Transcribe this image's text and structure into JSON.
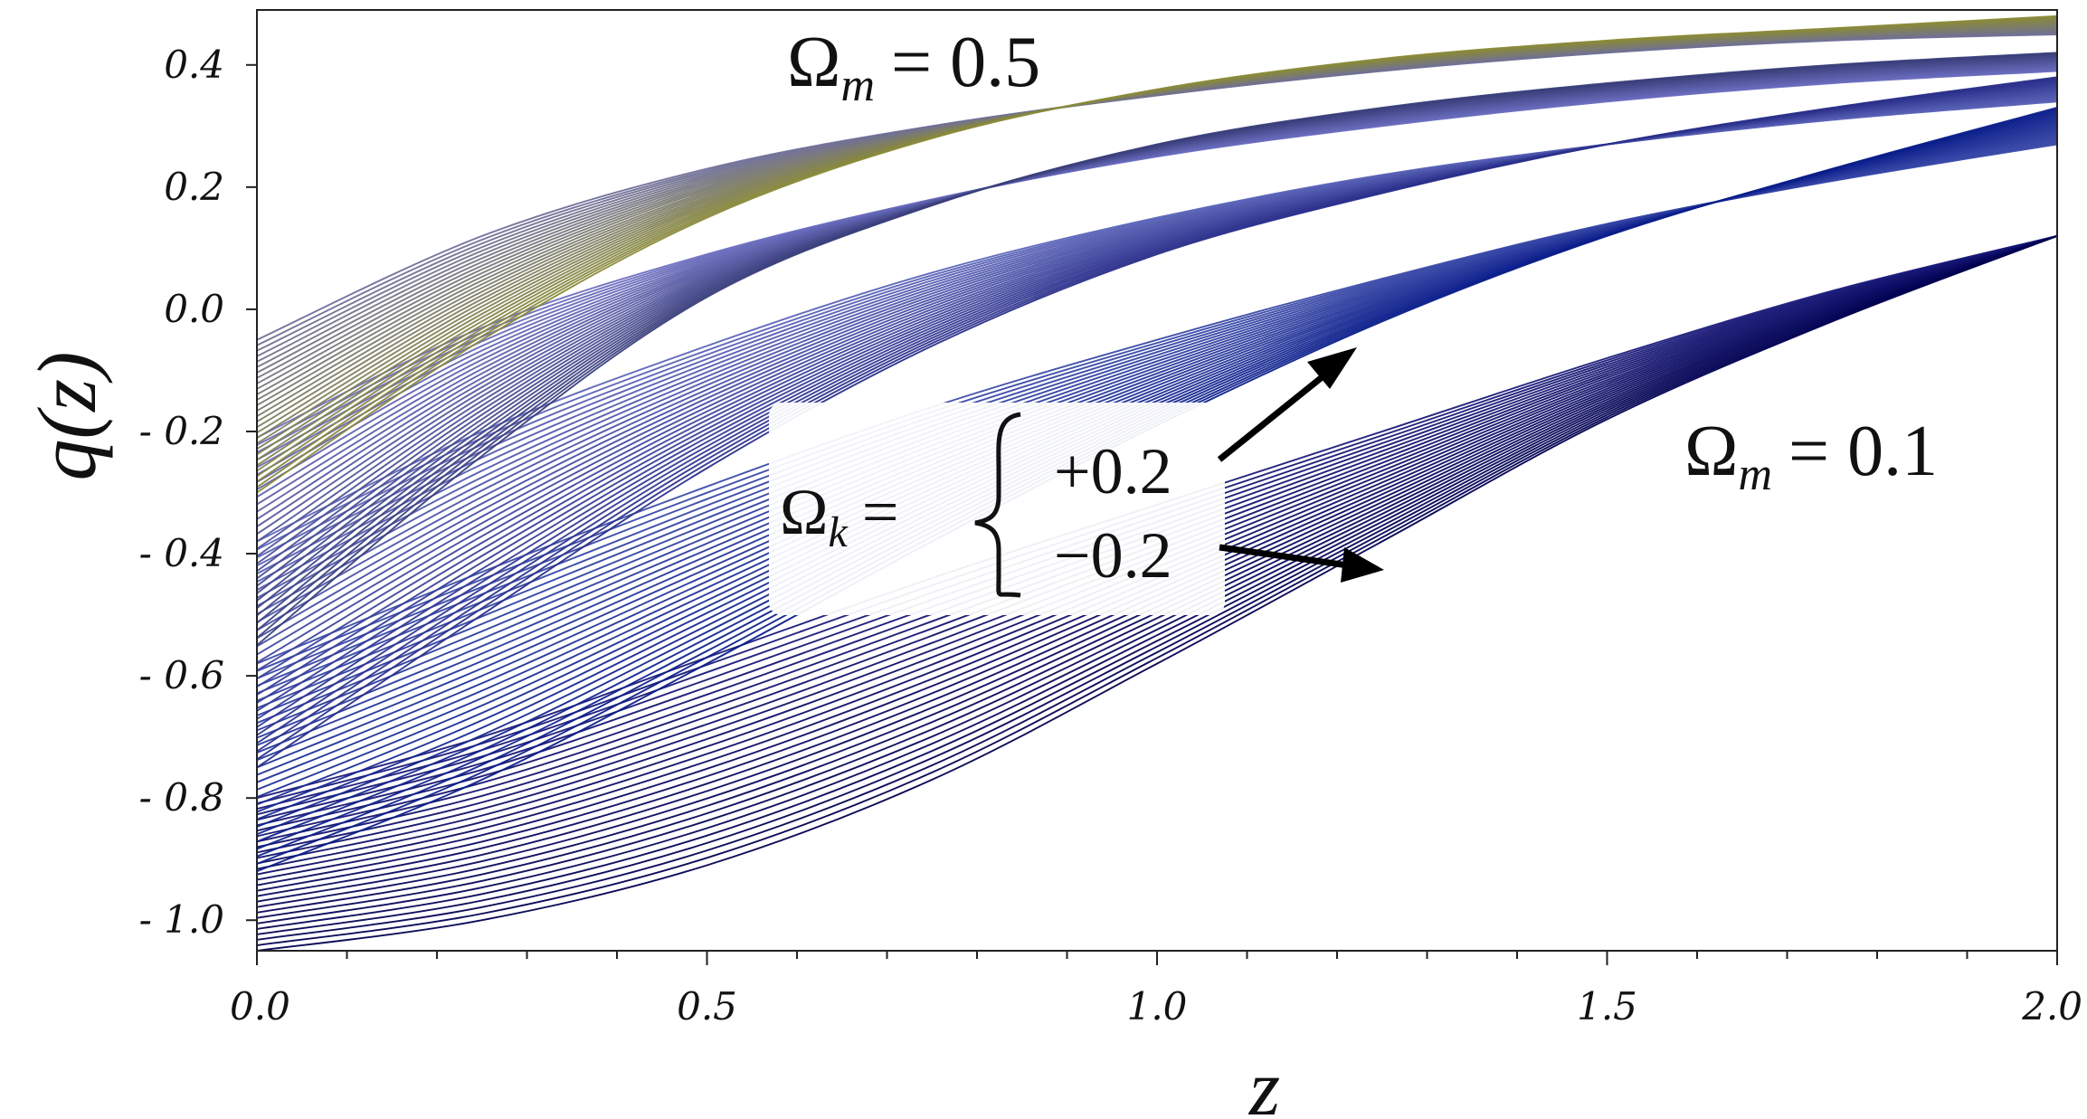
{
  "chart_data": {
    "type": "line",
    "title": "",
    "xlabel": "z",
    "ylabel": "q(z)",
    "xlim": [
      0.0,
      2.0
    ],
    "ylim": [
      -1.05,
      0.49
    ],
    "xticks": [
      0.0,
      0.5,
      1.0,
      1.5,
      2.0
    ],
    "xtick_labels": [
      "0.0",
      "0.5",
      "1.0",
      "1.5",
      "2.0"
    ],
    "yticks": [
      0.4,
      0.2,
      0.0,
      -0.2,
      -0.4,
      -0.6,
      -0.8,
      -1.0
    ],
    "ytick_labels": [
      "0.4",
      "0.2",
      "0.0",
      "- 0.2",
      "- 0.4",
      "- 0.6",
      "- 0.8",
      "- 1.0"
    ],
    "x_minor_step": 0.1,
    "grid": false,
    "legend": "none",
    "description_of_families": "Deceleration parameter q(z) curves for Omega_m from 0.1 to 0.5 and Omega_k from -0.2 to +0.2",
    "series": [
      {
        "name": "Omega_m=0.1, Omega_k=+0.2",
        "x": [
          0.0,
          0.25,
          0.5,
          0.75,
          1.0,
          1.25,
          1.5,
          1.75,
          2.0
        ],
        "values": [
          -0.8,
          -0.7,
          -0.57,
          -0.44,
          -0.32,
          -0.2,
          -0.08,
          0.03,
          0.12
        ],
        "color": "#1a1a7a"
      },
      {
        "name": "Omega_m=0.1, Omega_k=-0.2",
        "x": [
          0.0,
          0.25,
          0.5,
          0.75,
          1.0,
          1.25,
          1.5,
          1.75,
          2.0
        ],
        "values": [
          -1.05,
          -1.0,
          -0.91,
          -0.77,
          -0.58,
          -0.38,
          -0.18,
          -0.02,
          0.12
        ],
        "color": "#000050"
      },
      {
        "name": "Omega_m=0.2, Omega_k=+0.2",
        "x": [
          0.0,
          0.25,
          0.5,
          0.75,
          1.0,
          1.25,
          1.5,
          1.75,
          2.0
        ],
        "values": [
          -0.58,
          -0.43,
          -0.29,
          -0.16,
          -0.05,
          0.05,
          0.14,
          0.21,
          0.27
        ],
        "color": "#3a4aa8"
      },
      {
        "name": "Omega_m=0.2, Omega_k=-0.2",
        "x": [
          0.0,
          0.25,
          0.5,
          0.75,
          1.0,
          1.25,
          1.5,
          1.75,
          2.0
        ],
        "values": [
          -0.92,
          -0.77,
          -0.58,
          -0.38,
          -0.19,
          -0.02,
          0.12,
          0.23,
          0.33
        ],
        "color": "#0a1d8a"
      },
      {
        "name": "Omega_m=0.3, Omega_k=+0.2",
        "x": [
          0.0,
          0.25,
          0.5,
          0.75,
          1.0,
          1.25,
          1.5,
          1.75,
          2.0
        ],
        "values": [
          -0.38,
          -0.2,
          -0.06,
          0.06,
          0.15,
          0.22,
          0.27,
          0.31,
          0.34
        ],
        "color": "#5b64b8"
      },
      {
        "name": "Omega_m=0.3, Omega_k=-0.2",
        "x": [
          0.0,
          0.25,
          0.5,
          0.75,
          1.0,
          1.25,
          1.5,
          1.75,
          2.0
        ],
        "values": [
          -0.75,
          -0.5,
          -0.26,
          -0.06,
          0.09,
          0.19,
          0.27,
          0.33,
          0.38
        ],
        "color": "#2a2f8a"
      },
      {
        "name": "Omega_m=0.4, Omega_k=+0.2",
        "x": [
          0.0,
          0.25,
          0.5,
          0.75,
          1.0,
          1.25,
          1.5,
          1.75,
          2.0
        ],
        "values": [
          -0.21,
          -0.03,
          0.09,
          0.18,
          0.25,
          0.3,
          0.34,
          0.37,
          0.39
        ],
        "color": "#6c6ec0"
      },
      {
        "name": "Omega_m=0.4, Omega_k=-0.2",
        "x": [
          0.0,
          0.25,
          0.5,
          0.75,
          1.0,
          1.25,
          1.5,
          1.75,
          2.0
        ],
        "values": [
          -0.55,
          -0.24,
          0.02,
          0.17,
          0.27,
          0.33,
          0.37,
          0.4,
          0.42
        ],
        "color": "#3a3f7a"
      },
      {
        "name": "Omega_m=0.5, Omega_k=+0.2",
        "x": [
          0.0,
          0.25,
          0.5,
          0.75,
          1.0,
          1.25,
          1.5,
          1.75,
          2.0
        ],
        "values": [
          -0.05,
          0.12,
          0.23,
          0.3,
          0.35,
          0.39,
          0.42,
          0.44,
          0.45
        ],
        "color": "#6f6f9a"
      },
      {
        "name": "Omega_m=0.5, Omega_k=-0.2",
        "x": [
          0.0,
          0.25,
          0.5,
          0.75,
          1.0,
          1.25,
          1.5,
          1.75,
          2.0
        ],
        "values": [
          -0.3,
          -0.05,
          0.15,
          0.28,
          0.36,
          0.41,
          0.44,
          0.46,
          0.48
        ],
        "color": "#8a8a3a"
      }
    ],
    "annotations": {
      "top_label": {
        "omega": "Ω",
        "sub": "m",
        "eq": "= 0.5"
      },
      "right_label": {
        "omega": "Ω",
        "sub": "m",
        "eq": "= 0.1"
      },
      "omega_k": {
        "omega": "Ω",
        "sub": "k",
        "eq": "=",
        "plus": "+0.2",
        "minus": "−0.2"
      }
    }
  }
}
